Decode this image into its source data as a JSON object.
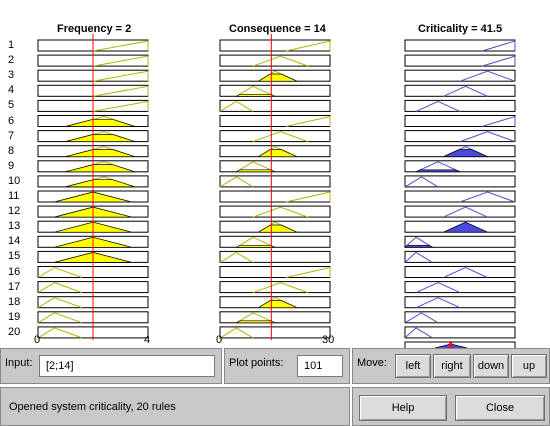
{
  "columns": [
    {
      "title": "Frequency = 2",
      "axis_min": "0",
      "axis_max": "4",
      "value": 2,
      "range": [
        0,
        4
      ]
    },
    {
      "title": "Consequence = 14",
      "axis_min": "0",
      "axis_max": "30",
      "value": 14,
      "range": [
        0,
        30
      ]
    },
    {
      "title": "Criticality = 41.5",
      "value": 41.5,
      "range": [
        0,
        100
      ]
    }
  ],
  "rules": [
    "1",
    "2",
    "3",
    "4",
    "5",
    "6",
    "7",
    "8",
    "9",
    "10",
    "11",
    "12",
    "13",
    "14",
    "15",
    "16",
    "17",
    "18",
    "19",
    "20"
  ],
  "colors": {
    "input_fill": "#ffff00",
    "output_fill": "#4a4ae0",
    "input_line": "#b4b400",
    "output_line": "#5050d0",
    "cursor": "#ff0000"
  },
  "controls": {
    "input_label": "Input:",
    "input_value": "[2;14]",
    "plot_points_label": "Plot points:",
    "plot_points_value": "101",
    "move_label": "Move:",
    "left": "left",
    "right": "right",
    "down": "down",
    "up": "up"
  },
  "status": "Opened system criticality, 20 rules",
  "help_button": "Help",
  "close_button": "Close"
}
